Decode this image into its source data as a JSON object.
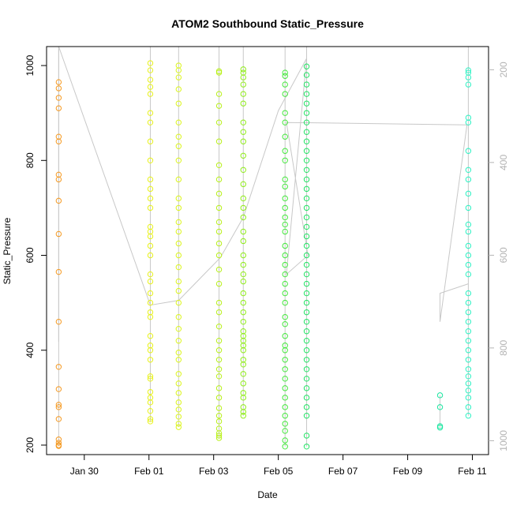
{
  "chart_data": {
    "type": "scatter",
    "title": "ATOM2 Southbound Static_Pressure",
    "xlabel": "Date",
    "ylabel": "Static_Pressure",
    "x_ticks": [
      "Jan 30",
      "Feb 01",
      "Feb 03",
      "Feb 05",
      "Feb 07",
      "Feb 09",
      "Feb 11"
    ],
    "xlim": [
      "2014-01-28T20:00",
      "2014-02-11T12:00"
    ],
    "ylim": [
      180,
      1040
    ],
    "y_ticks": [
      200,
      400,
      600,
      800,
      1000
    ],
    "y2_ticks": [
      200,
      400,
      600,
      800,
      1000
    ],
    "y2lim": [
      1030,
      150
    ],
    "y2_reversed": true,
    "grid": false,
    "legend": "none",
    "colors": {
      "orange": "#f59a23",
      "yellow_green": "#d9f21a",
      "lime": "#8df018",
      "green": "#33e64d",
      "teal": "#26f2b0",
      "trend_line": "#c8c8c8"
    },
    "clusters": [
      {
        "date": "2014-01-29T05:00",
        "color": "#f59a23",
        "pressures": [
          198,
          200,
          205,
          212,
          255,
          280,
          285,
          318,
          365,
          460,
          565,
          645,
          715,
          760,
          770,
          840,
          850,
          910,
          932,
          952,
          965
        ]
      },
      {
        "date": "2014-02-01T01:00",
        "color": "#e8f21a",
        "pressures": [
          250,
          255,
          272,
          290,
          300,
          312,
          340,
          345,
          380,
          400,
          410,
          430,
          470,
          480,
          500,
          520,
          545,
          560,
          600,
          620,
          640,
          650,
          660,
          700,
          720,
          740,
          760,
          800,
          840,
          880,
          900,
          940,
          955,
          970,
          990,
          1005
        ]
      },
      {
        "date": "2014-02-01T22:00",
        "color": "#dcf51e",
        "pressures": [
          238,
          245,
          260,
          275,
          290,
          310,
          330,
          350,
          380,
          395,
          420,
          445,
          470,
          500,
          525,
          545,
          575,
          600,
          625,
          650,
          670,
          700,
          720,
          760,
          800,
          830,
          850,
          880,
          920,
          950,
          975,
          990,
          1000
        ]
      },
      {
        "date": "2014-02-03T04:00",
        "color": "#b8f01a",
        "pressures": [
          215,
          220,
          225,
          235,
          250,
          262,
          278,
          300,
          320,
          345,
          360,
          380,
          400,
          420,
          450,
          480,
          500,
          540,
          570,
          600,
          625,
          650,
          670,
          700,
          730,
          760,
          790,
          840,
          880,
          915,
          940,
          985,
          988
        ]
      },
      {
        "date": "2014-02-03T22:00",
        "color": "#90ee18",
        "pressures": [
          262,
          270,
          280,
          300,
          310,
          330,
          350,
          370,
          380,
          400,
          410,
          420,
          430,
          440,
          460,
          480,
          500,
          520,
          545,
          560,
          580,
          600,
          630,
          650,
          680,
          700,
          720,
          750,
          780,
          810,
          840,
          860,
          880,
          920,
          940,
          960,
          975,
          985,
          992
        ]
      },
      {
        "date": "2014-02-05T05:00",
        "color": "#44e83c",
        "pressures": [
          197,
          210,
          230,
          245,
          262,
          280,
          300,
          320,
          340,
          360,
          380,
          400,
          410,
          430,
          455,
          470,
          500,
          520,
          540,
          560,
          580,
          600,
          620,
          650,
          665,
          680,
          700,
          720,
          745,
          760,
          800,
          820,
          850,
          880,
          900,
          940,
          960,
          978,
          985
        ]
      },
      {
        "date": "2014-02-05T21:00",
        "color": "#22e464",
        "pressures": [
          197,
          220,
          262,
          280,
          300,
          320,
          340,
          360,
          380,
          400,
          420,
          440,
          460,
          480,
          500,
          520,
          540,
          560,
          580,
          600,
          620,
          640,
          660,
          680,
          700,
          720,
          740,
          760,
          780,
          800,
          820,
          840,
          860,
          880,
          900,
          920,
          940,
          960,
          980,
          998
        ]
      },
      {
        "date": "2014-02-10T00:00",
        "color": "#1ae6a0",
        "pressures": [
          237,
          240,
          280,
          305
        ]
      },
      {
        "date": "2014-02-10T21:00",
        "color": "#2ef2c4",
        "pressures": [
          262,
          280,
          300,
          315,
          330,
          345,
          360,
          380,
          400,
          420,
          440,
          460,
          480,
          500,
          520,
          560,
          580,
          600,
          620,
          650,
          665,
          700,
          730,
          760,
          780,
          820,
          880,
          890,
          960,
          975,
          985,
          990
        ]
      }
    ],
    "trend_line": [
      {
        "date": "2014-01-29T05:00",
        "pressure": 418
      },
      {
        "date": "2014-01-29T05:00",
        "pressure": 1040
      },
      {
        "date": "2014-02-01T01:00",
        "pressure": 495
      },
      {
        "date": "2014-02-01T22:00",
        "pressure": 505
      },
      {
        "date": "2014-02-03T05:00",
        "pressure": 595
      },
      {
        "date": "2014-02-03T22:00",
        "pressure": 680
      },
      {
        "date": "2014-02-05T00:00",
        "pressure": 905
      },
      {
        "date": "2014-02-05T21:00",
        "pressure": 1015
      },
      {
        "date": "2014-02-05T06:00",
        "pressure": 560
      },
      {
        "date": "2014-02-05T22:00",
        "pressure": 600
      },
      {
        "date": "2014-02-05T06:00",
        "pressure": 880
      },
      {
        "date": "2014-02-10T20:00",
        "pressure": 875
      },
      {
        "date": "2014-02-10T00:00",
        "pressure": 460
      },
      {
        "date": "2014-02-10T00:00",
        "pressure": 520
      },
      {
        "date": "2014-02-10T21:00",
        "pressure": 540
      }
    ]
  }
}
